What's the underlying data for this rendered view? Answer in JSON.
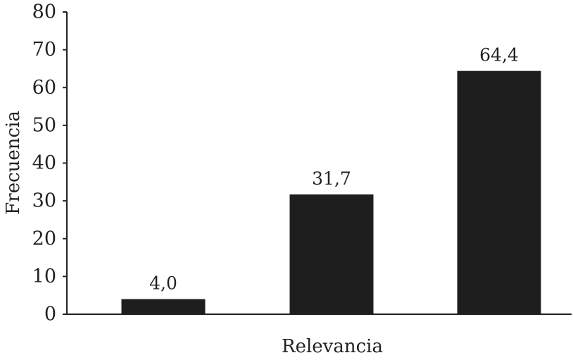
{
  "chart_data": {
    "type": "bar",
    "categories": [
      "",
      "",
      ""
    ],
    "values": [
      4.0,
      31.7,
      64.4
    ],
    "data_labels": [
      "4,0",
      "31,7",
      "64,4"
    ],
    "title": "",
    "xlabel": "Relevancia",
    "ylabel": "Frecuencia",
    "ylim": [
      0,
      80
    ],
    "yticks": [
      0,
      10,
      20,
      30,
      40,
      50,
      60,
      70,
      80
    ],
    "ytick_labels": [
      "0",
      "10",
      "20",
      "30",
      "40",
      "50",
      "60",
      "70",
      "80"
    ],
    "grid": false,
    "legend": "none",
    "bar_color": "#1e1e1e",
    "axis_color": "#222222"
  }
}
